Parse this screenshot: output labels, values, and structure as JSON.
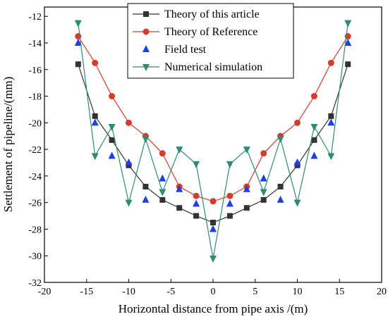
{
  "chart_data": {
    "type": "line",
    "title": "",
    "xlabel": "Horizontal distance from pipe axis /(m)",
    "ylabel": "Settlement of pipeline/(mm)",
    "xlim": [
      -20,
      20
    ],
    "ylim": [
      -32,
      -11.3
    ],
    "xticks": [
      -20,
      -15,
      -10,
      -5,
      0,
      5,
      10,
      15,
      20
    ],
    "yticks": [
      -32,
      -30,
      -28,
      -26,
      -24,
      -22,
      -20,
      -18,
      -16,
      -14,
      -12
    ],
    "grid": false,
    "legend_position": "top-center",
    "x": [
      -16,
      -14,
      -12,
      -10,
      -8,
      -6,
      -4,
      -2,
      0,
      2,
      4,
      6,
      8,
      10,
      12,
      14,
      16
    ],
    "series": [
      {
        "name": "Theory of this article",
        "color": "#333333",
        "marker": "square",
        "connected": true,
        "values": [
          -15.6,
          -19.5,
          -21.3,
          -23.2,
          -24.8,
          -25.8,
          -26.4,
          -27.0,
          -27.5,
          -27.0,
          -26.4,
          -25.8,
          -24.8,
          -23.2,
          -21.3,
          -19.5,
          -15.6
        ]
      },
      {
        "name": "Theory of Reference",
        "color": "#d43c2c",
        "marker": "circle",
        "connected": true,
        "values": [
          -13.5,
          -15.5,
          -18.0,
          -20.0,
          -21.0,
          -22.3,
          -24.8,
          -25.5,
          -25.9,
          -25.5,
          -24.8,
          -22.3,
          -21.0,
          -20.0,
          -18.0,
          -15.5,
          -13.5
        ]
      },
      {
        "name": "Field test",
        "color": "#1f3fe0",
        "marker": "triangle-up",
        "connected": false,
        "values": [
          -14.0,
          -20.0,
          -22.5,
          -23.0,
          -25.8,
          -24.2,
          -25.0,
          -26.1,
          -28.0,
          -26.1,
          -25.0,
          -24.2,
          -25.8,
          -23.0,
          -22.5,
          -20.0,
          -14.0
        ]
      },
      {
        "name": "Numerical simulation",
        "color": "#2e8b74",
        "marker": "triangle-down",
        "connected": true,
        "values": [
          -12.5,
          -22.5,
          -20.3,
          -26.0,
          -21.2,
          -25.2,
          -22.0,
          -23.1,
          -30.2,
          -23.1,
          -22.0,
          -25.2,
          -21.2,
          -26.0,
          -20.3,
          -22.5,
          -12.5
        ]
      }
    ]
  }
}
